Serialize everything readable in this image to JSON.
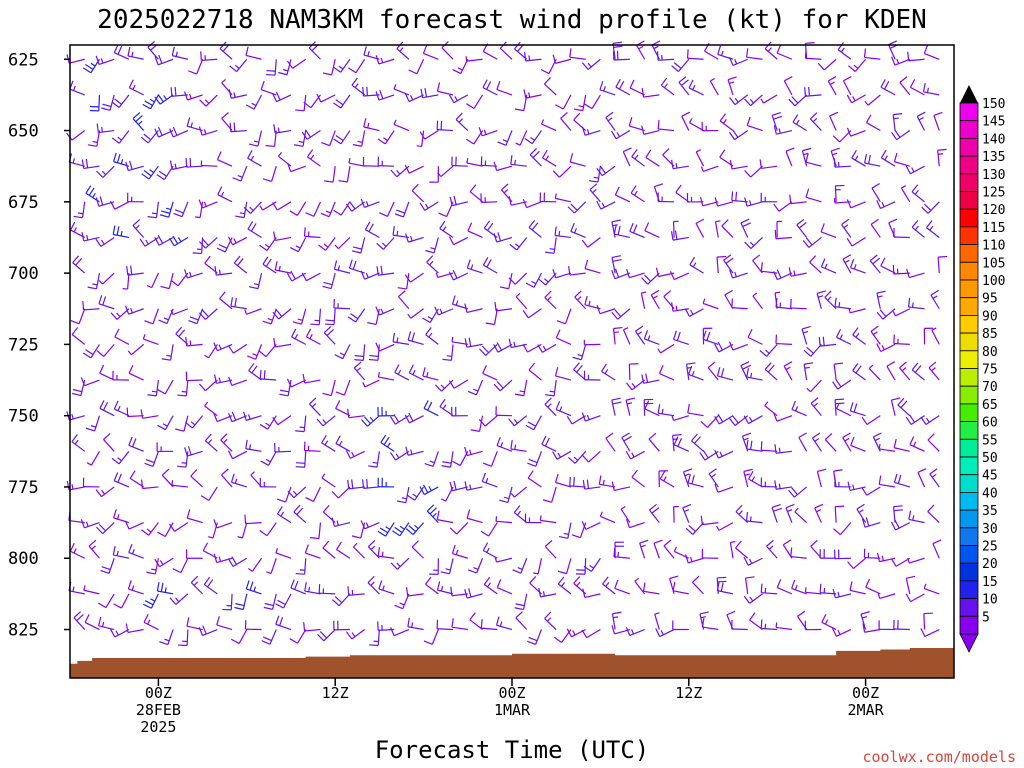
{
  "chart_data": {
    "type": "wind-barb-profile",
    "title": "2025022718 NAM3KM forecast wind profile (kt) for KDEN",
    "xlabel": "Forecast Time (UTC)",
    "ylabel": "",
    "y_axis": {
      "ticks": [
        625,
        650,
        675,
        700,
        725,
        750,
        775,
        800,
        825
      ],
      "range": [
        620,
        842
      ],
      "unit": "hPa"
    },
    "x_axis": {
      "range_hours": [
        -6,
        54
      ],
      "ticks": [
        {
          "hour": 0,
          "lines": [
            "00Z",
            "28FEB",
            "2025"
          ]
        },
        {
          "hour": 12,
          "lines": [
            "12Z"
          ]
        },
        {
          "hour": 24,
          "lines": [
            "00Z",
            "1MAR"
          ]
        },
        {
          "hour": 36,
          "lines": [
            "12Z"
          ]
        },
        {
          "hour": 48,
          "lines": [
            "00Z",
            "2MAR"
          ]
        }
      ]
    },
    "colorbar": {
      "values": [
        5,
        10,
        15,
        20,
        25,
        30,
        35,
        40,
        45,
        50,
        55,
        60,
        65,
        70,
        75,
        80,
        85,
        90,
        95,
        100,
        105,
        110,
        115,
        120,
        125,
        130,
        135,
        140,
        145,
        150
      ],
      "colors": [
        "#8800ee",
        "#6611ee",
        "#2222ee",
        "#0033dd",
        "#0055ee",
        "#1177ee",
        "#0099ee",
        "#00bbee",
        "#00ddcc",
        "#00eebb",
        "#00ee99",
        "#22ee44",
        "#44ee00",
        "#88ee00",
        "#bbee00",
        "#eeee00",
        "#eedd00",
        "#ffcc00",
        "#ffaa00",
        "#ff9900",
        "#ff8800",
        "#ff6600",
        "#ff3300",
        "#ff0000",
        "#ee0044",
        "#ee0066",
        "#ee0088",
        "#ee00aa",
        "#ee00cc",
        "#ee00ee"
      ]
    },
    "terrain": {
      "color": "#a0522d",
      "surface_pressure_by_hour": [
        [
          -6,
          837
        ],
        [
          -5.5,
          836
        ],
        [
          -4.5,
          835
        ],
        [
          5,
          835
        ],
        [
          10,
          834.5
        ],
        [
          13,
          834
        ],
        [
          16,
          834
        ],
        [
          20,
          834
        ],
        [
          24,
          833.5
        ],
        [
          28,
          833.5
        ],
        [
          31,
          834
        ],
        [
          35,
          834
        ],
        [
          40,
          834
        ],
        [
          43,
          834
        ],
        [
          46,
          832.5
        ],
        [
          49,
          832
        ],
        [
          51,
          831.5
        ],
        [
          54,
          830
        ]
      ]
    },
    "barb_colors": {
      "slow": "#8800ee",
      "mid": "#6611ee",
      "fast": "#2222ee"
    }
  },
  "credit": "coolwx.com/models"
}
